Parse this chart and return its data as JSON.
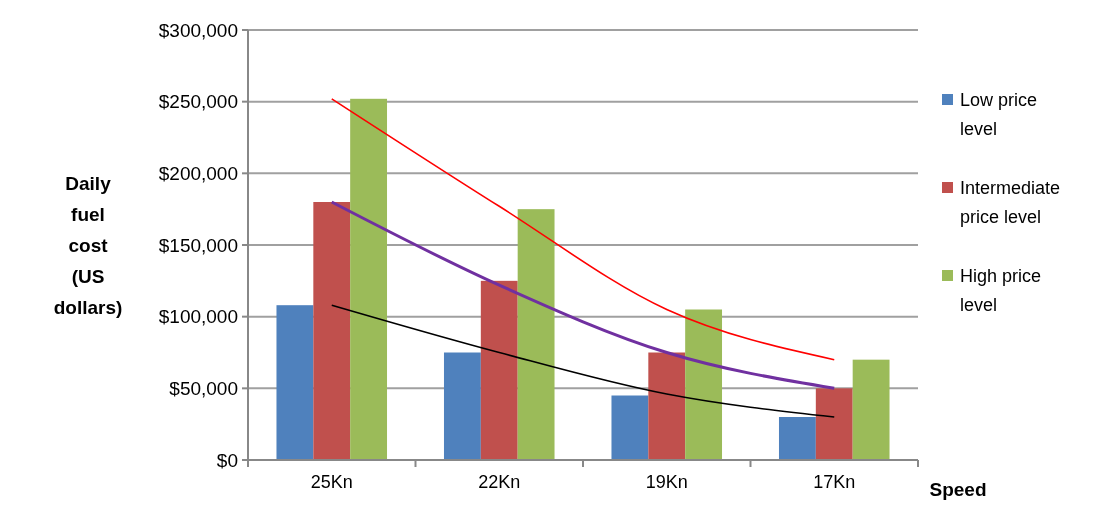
{
  "chart_data": {
    "type": "bar",
    "xlabel": "Speed",
    "ylabel": "Daily fuel cost (US dollars)",
    "categories": [
      "25Kn",
      "22Kn",
      "19Kn",
      "17Kn"
    ],
    "series": [
      {
        "name": "Low price level",
        "color": "#4f81bd",
        "values": [
          108000,
          75000,
          45000,
          30000
        ]
      },
      {
        "name": "Intermediate price level",
        "color": "#c0504d",
        "values": [
          180000,
          125000,
          75000,
          50000
        ]
      },
      {
        "name": "High price level",
        "color": "#9bbb59",
        "values": [
          252000,
          175000,
          105000,
          70000
        ]
      },
      {
        "type": "line",
        "color": "#ff0000",
        "values": [
          252000,
          177000,
          105000,
          70000
        ]
      },
      {
        "type": "line",
        "color": "#7030a0",
        "values": [
          180000,
          122000,
          75000,
          50000
        ]
      },
      {
        "type": "line",
        "color": "#000000",
        "values": [
          108000,
          75000,
          46000,
          30000
        ]
      }
    ],
    "ylim": [
      0,
      300000
    ],
    "yticks": [
      {
        "value": 0,
        "label": "$0"
      },
      {
        "value": 50000,
        "label": "$50,000"
      },
      {
        "value": 100000,
        "label": "$100,000"
      },
      {
        "value": 150000,
        "label": "$150,000"
      },
      {
        "value": 200000,
        "label": "$200,000"
      },
      {
        "value": 250000,
        "label": "$250,000"
      },
      {
        "value": 300000,
        "label": "$300,000"
      }
    ],
    "grid": "y",
    "legend": "right"
  }
}
